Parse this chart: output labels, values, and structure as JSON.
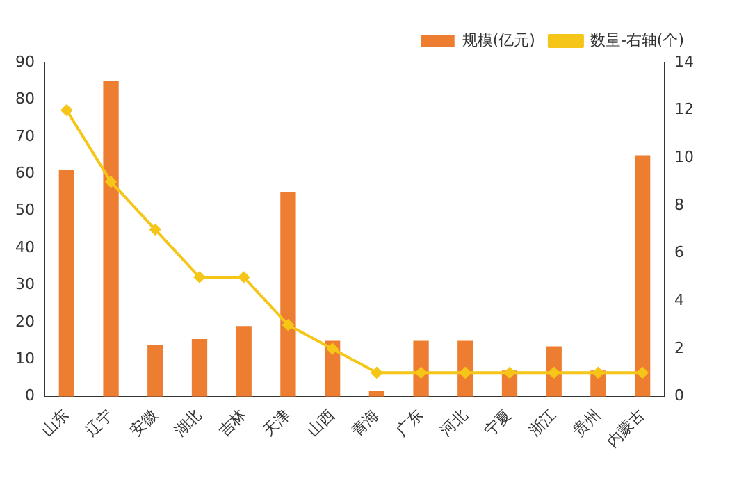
{
  "chart_data": {
    "type": "bar",
    "categories": [
      "山东",
      "辽宁",
      "安徽",
      "湖北",
      "吉林",
      "天津",
      "山西",
      "青海",
      "广东",
      "河北",
      "宁夏",
      "浙江",
      "贵州",
      "内蒙古"
    ],
    "series": [
      {
        "name": "规模(亿元)",
        "color": "#ed7d31",
        "values": [
          61,
          85,
          14,
          15.5,
          19,
          55,
          15,
          1.5,
          15,
          15,
          7,
          13.5,
          7,
          65
        ]
      },
      {
        "name": "数量-右轴(个)",
        "type": "line",
        "axis": "y2",
        "color": "#f5c518",
        "marker": "diamond",
        "values": [
          12,
          9,
          7,
          5,
          5,
          3,
          2,
          1,
          1,
          1,
          1,
          1,
          1,
          1
        ]
      }
    ],
    "ylim": [
      0,
      90
    ],
    "yticks": [
      0,
      10,
      20,
      30,
      40,
      50,
      60,
      70,
      80,
      90
    ],
    "y2lim": [
      0,
      14
    ],
    "y2ticks": [
      0,
      2,
      4,
      6,
      8,
      10,
      12,
      14
    ],
    "grid": false,
    "legend": "top right"
  }
}
